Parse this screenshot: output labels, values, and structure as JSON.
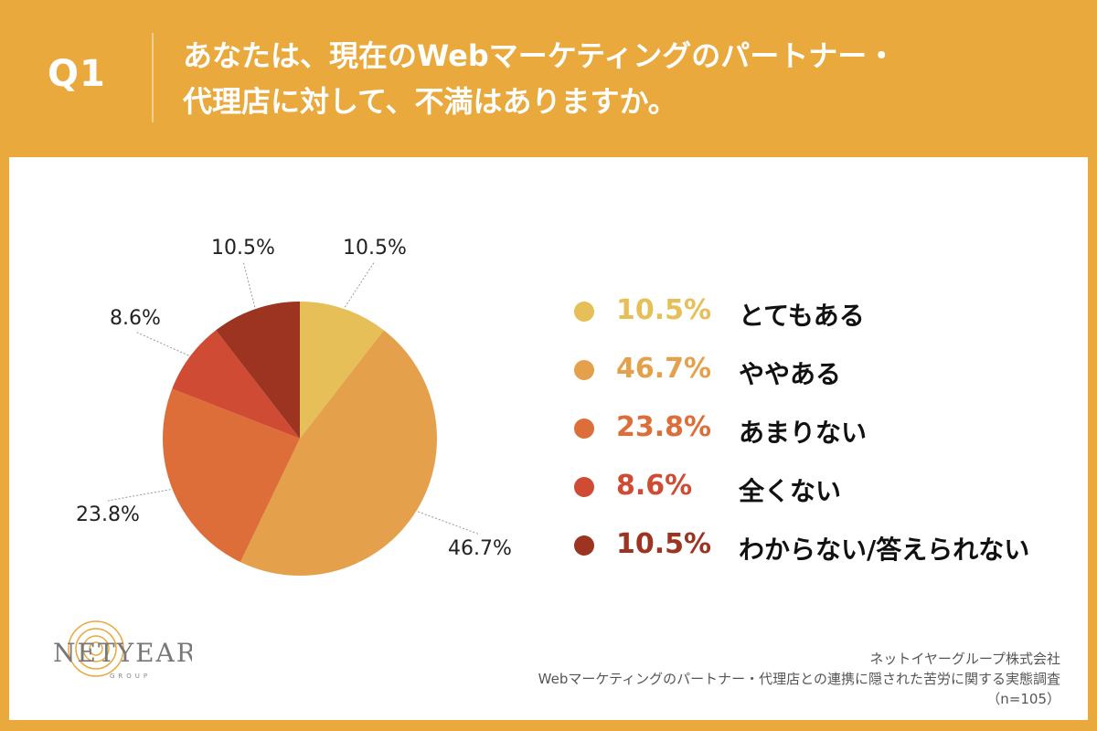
{
  "question": {
    "number": "Q1",
    "line1": "あなたは、現在のWebマーケティングのパートナー・",
    "line2": "代理店に対して、不満はありますか。"
  },
  "chart_data": {
    "type": "pie",
    "categories": [
      "とてもある",
      "ややある",
      "あまりない",
      "全くない",
      "わからない/答えられない"
    ],
    "values": [
      10.5,
      46.7,
      23.8,
      8.6,
      10.5
    ],
    "value_labels": [
      "10.5%",
      "46.7%",
      "23.8%",
      "8.6%",
      "10.5%"
    ],
    "colors": [
      "#E6BF58",
      "#E4A04B",
      "#DD6E3A",
      "#CF4B33",
      "#9C3421"
    ],
    "legend_placement": "right",
    "start_angle": "top, clockwise"
  },
  "footer": {
    "company": "ネットイヤーグループ株式会社",
    "survey": "Webマーケティングのパートナー・代理店との連携に隠された苦労に関する実態調査",
    "sample": "（n=105）"
  },
  "logo": {
    "wordmark": "NETYEAR",
    "sub": "GROUP"
  }
}
